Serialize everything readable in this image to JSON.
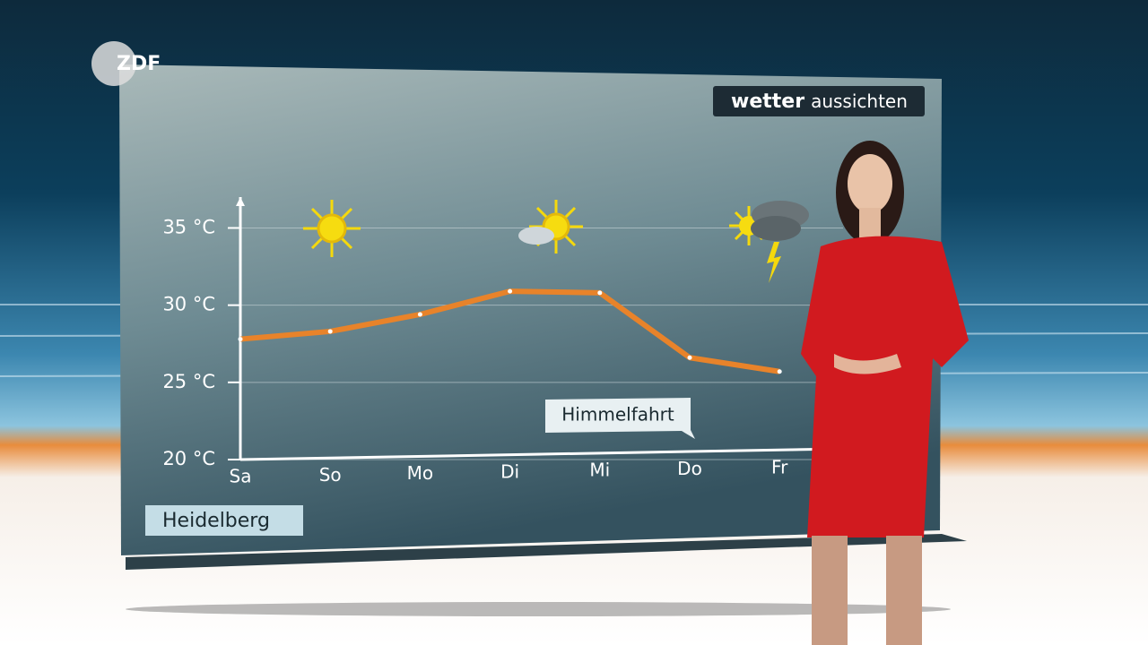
{
  "logo": "ZDF",
  "badge": {
    "bold": "wetter",
    "regular": "aussichten"
  },
  "location": "Heidelberg",
  "chart_data": {
    "type": "line",
    "categories": [
      "Sa",
      "So",
      "Mo",
      "Di",
      "Mi",
      "Do",
      "Fr"
    ],
    "series": [
      {
        "color": "#e8832a",
        "values": [
          27.8,
          28.3,
          29.4,
          30.9,
          30.8,
          26.6,
          25.7
        ]
      }
    ],
    "ylim": [
      20,
      37
    ],
    "yticks": [
      {
        "value": 20,
        "label": "20 °C"
      },
      {
        "value": 25,
        "label": "25 °C"
      },
      {
        "value": 30,
        "label": "30 °C"
      },
      {
        "value": 35,
        "label": "35 °C"
      }
    ],
    "grid": true,
    "annotation": "Himmelfahrt"
  }
}
